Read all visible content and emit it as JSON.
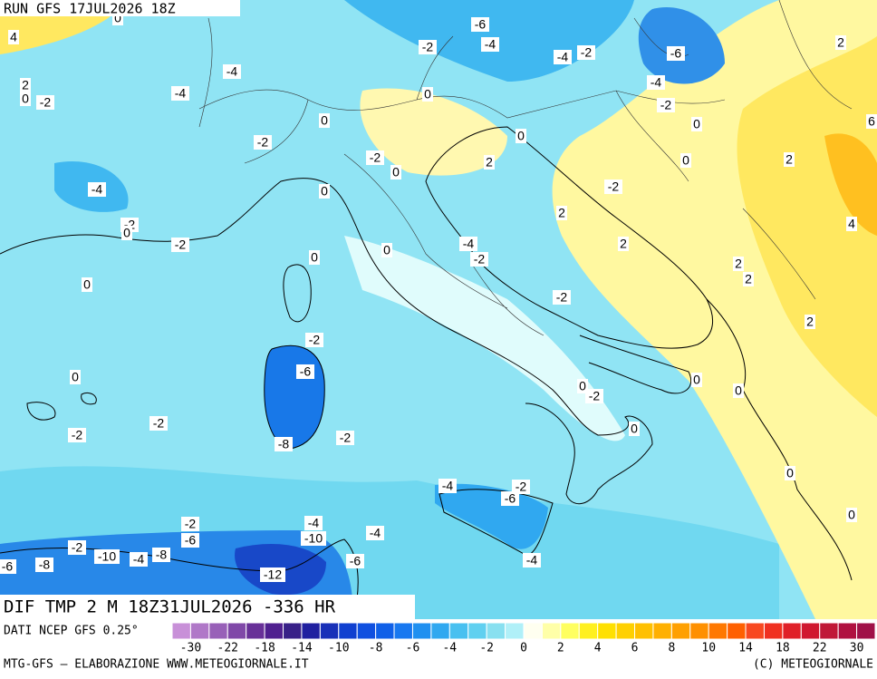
{
  "header": {
    "run": "RUN GFS 17JUL2026 18Z"
  },
  "title": "DIF TMP 2 M 18Z31JUL2026 -336 HR",
  "source": "DATI NCEP GFS 0.25°",
  "footer": {
    "left": "MTG-GFS – ELABORAZIONE WWW.METEOGIORNALE.IT",
    "right": "(C) METEOGIORNALE"
  },
  "contour_labels": [
    4,
    0,
    -6,
    -4,
    -2,
    -4,
    -2,
    -6,
    2,
    -4,
    -4,
    2,
    0,
    -2,
    -4,
    0,
    -2,
    0,
    6,
    0,
    -2,
    0,
    -2,
    0,
    2,
    0,
    2,
    0,
    -4,
    -2,
    2,
    -2,
    0,
    4,
    -2,
    -4,
    0,
    2,
    -2,
    0,
    2,
    2,
    0,
    -2,
    2,
    -2,
    -6,
    0,
    0,
    0,
    -2,
    0,
    -2,
    -2,
    0,
    -2,
    -8,
    0,
    -4,
    -2,
    -6,
    0,
    -2,
    -4,
    -4,
    -6,
    -10,
    -2,
    -10,
    -4,
    -8,
    -6,
    -4,
    -8,
    -6,
    -12
  ],
  "colorbar": {
    "labels": [
      -30,
      -22,
      -18,
      -14,
      -10,
      -8,
      -6,
      -4,
      -2,
      0,
      2,
      4,
      6,
      8,
      10,
      14,
      18,
      22,
      30
    ],
    "colors": [
      "#c890d8",
      "#b078c8",
      "#9860b8",
      "#8048a8",
      "#683098",
      "#502090",
      "#382088",
      "#2020a0",
      "#1830b8",
      "#1040d0",
      "#1050e0",
      "#1060e8",
      "#1878f0",
      "#2090f0",
      "#30a8f0",
      "#48c0f0",
      "#60d0f0",
      "#88e0f0",
      "#b0f0f8",
      "#fffff0",
      "#ffffa8",
      "#ffff60",
      "#fff020",
      "#ffe000",
      "#ffd000",
      "#ffc000",
      "#ffb000",
      "#ffa000",
      "#ff9000",
      "#ff7800",
      "#ff6000",
      "#f84820",
      "#f03020",
      "#e02028",
      "#d01830",
      "#c01838",
      "#b01040",
      "#a01048"
    ]
  }
}
